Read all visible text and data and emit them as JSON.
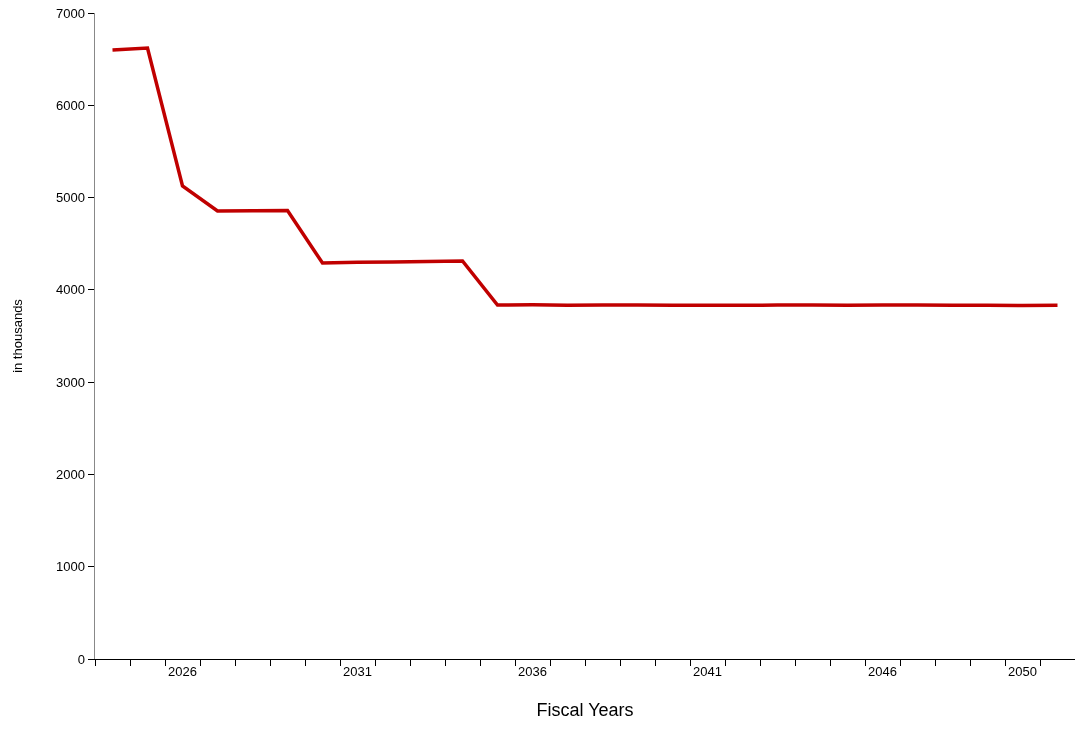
{
  "chart_data": {
    "type": "line",
    "xlabel": "Fiscal Years",
    "ylabel": "in thousands",
    "categories": [
      null,
      null,
      "2026",
      null,
      null,
      null,
      null,
      "2031",
      null,
      null,
      null,
      null,
      "2036",
      null,
      null,
      null,
      null,
      "2041",
      null,
      null,
      null,
      null,
      "2046",
      null,
      null,
      null,
      "2050",
      null
    ],
    "series": [
      {
        "color": "#c00000",
        "values": [
          6600,
          6620,
          5125,
          4855,
          4858,
          4860,
          4290,
          4300,
          4303,
          4308,
          4313,
          3835,
          3838,
          3833,
          3835,
          3835,
          3833,
          3832,
          3832,
          3835,
          3835,
          3833,
          3835,
          3835,
          3833,
          3832,
          3830,
          3833
        ]
      }
    ],
    "ylim": [
      0,
      7000
    ],
    "yticks": [
      0,
      1000,
      2000,
      3000,
      4000,
      5000,
      6000,
      7000
    ],
    "grid": false,
    "legend": false,
    "marker": "none",
    "line_style": "solid"
  }
}
